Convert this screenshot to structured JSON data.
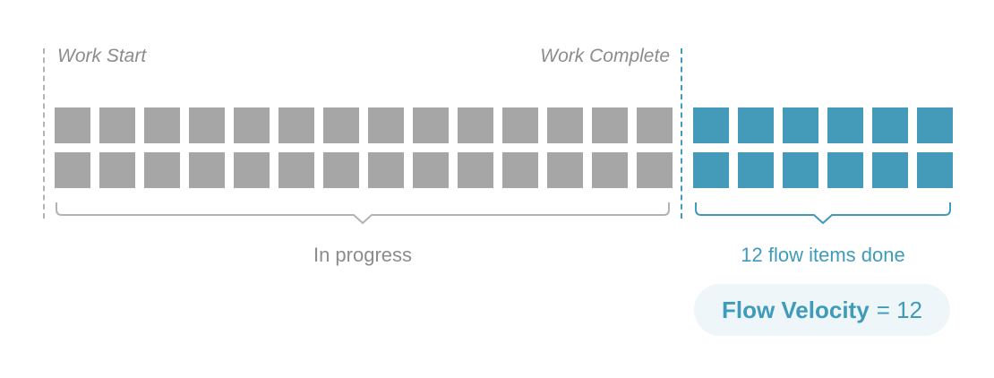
{
  "labels": {
    "work_start": "Work Start",
    "work_complete": "Work Complete"
  },
  "in_progress": {
    "caption": "In progress",
    "rows": 2,
    "items_per_row": 14,
    "color": "#a6a6a6"
  },
  "done": {
    "caption": "12 flow items done",
    "rows": 2,
    "items_per_row": 6,
    "color": "#449bb9"
  },
  "velocity": {
    "label": "Flow Velocity",
    "equals": "= 12"
  },
  "colors": {
    "gray_text": "#8c8c8c",
    "accent": "#3f9bb9",
    "pill_bg": "#eef6f9"
  }
}
